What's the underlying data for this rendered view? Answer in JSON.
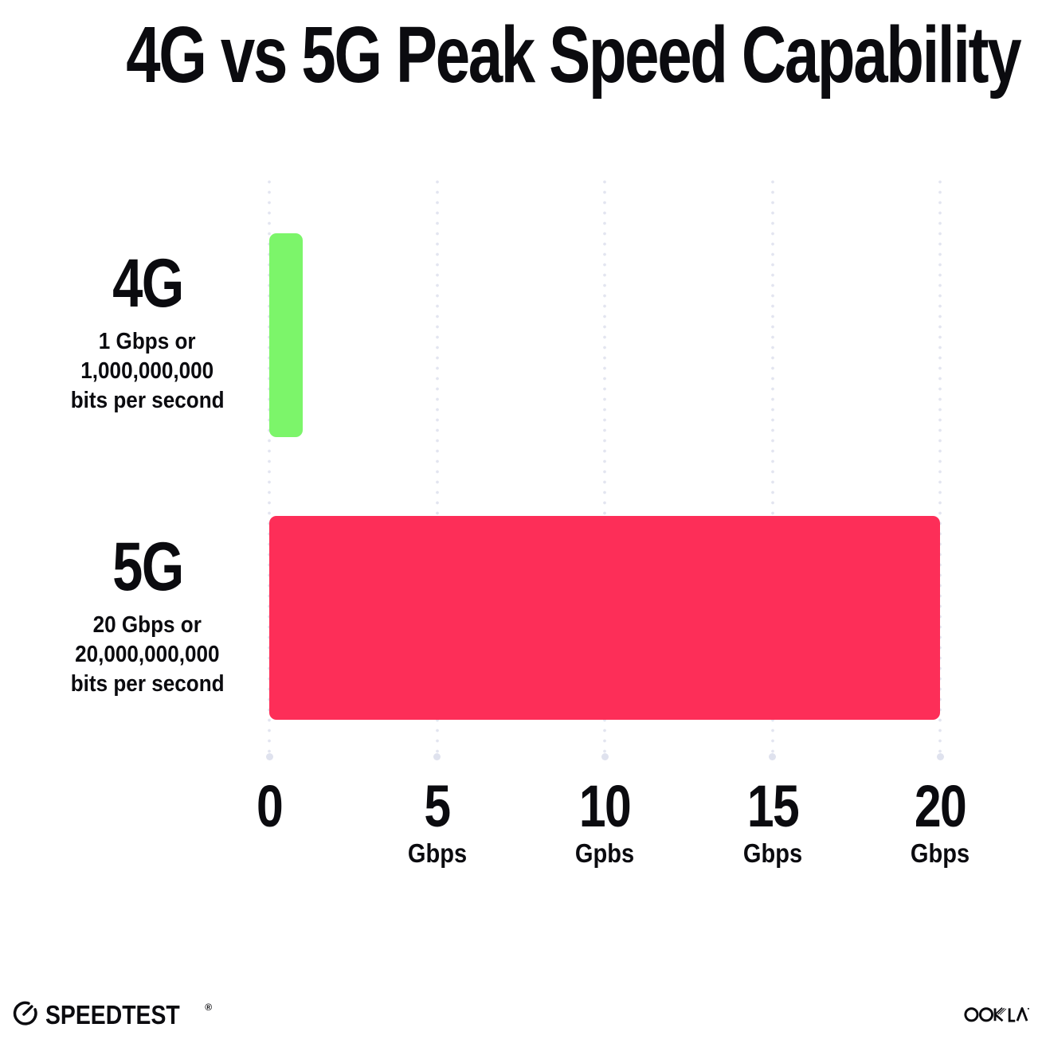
{
  "title": "4G vs 5G Peak Speed Capability",
  "chart_data": {
    "type": "bar",
    "orientation": "horizontal",
    "title": "4G vs 5G Peak Speed Capability",
    "categories": [
      "4G",
      "5G"
    ],
    "values": [
      1,
      20
    ],
    "value_unit": "Gbps",
    "xlim": [
      0,
      20
    ],
    "grid": "vertical-dotted",
    "legend": "none",
    "bar_colors": [
      "#7CF56A",
      "#FD2E58"
    ],
    "rows": [
      {
        "label": "4G",
        "sublabel_lines": [
          "1 Gbps or",
          "1,000,000,000",
          "bits per second"
        ],
        "value_gbps": 1
      },
      {
        "label": "5G",
        "sublabel_lines": [
          "20 Gbps or",
          "20,000,000,000",
          "bits per second"
        ],
        "value_gbps": 20
      }
    ],
    "x_ticks": [
      {
        "value": "0",
        "unit": ""
      },
      {
        "value": "5",
        "unit": "Gbps"
      },
      {
        "value": "10",
        "unit": "Gpbs"
      },
      {
        "value": "15",
        "unit": "Gbps"
      },
      {
        "value": "20",
        "unit": "Gbps"
      }
    ]
  },
  "footer": {
    "speedtest_icon": "speedometer-gauge-icon",
    "speedtest_label": "SPEEDTEST",
    "speedtest_trademark": "®",
    "ookla_label": "OOKLA",
    "ookla_trademark": "®"
  },
  "colors": {
    "background": "#FFFFFF",
    "text": "#0B0B0F",
    "bar_4g": "#7CF56A",
    "bar_5g": "#FD2E58",
    "grid_dot": "#E3E5F0",
    "grid_end_dot": "#DFE2EE"
  }
}
